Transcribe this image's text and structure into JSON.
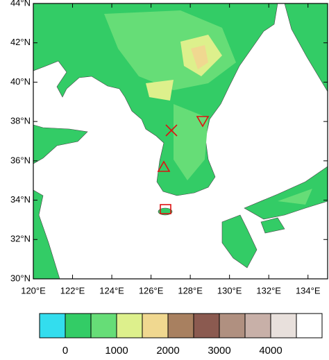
{
  "map": {
    "xlim": [
      120,
      135
    ],
    "ylim": [
      30,
      44
    ],
    "xticks": [
      {
        "value": 120,
        "label": "120°E"
      },
      {
        "value": 122,
        "label": "122°E"
      },
      {
        "value": 124,
        "label": "124°E"
      },
      {
        "value": 126,
        "label": "126°E"
      },
      {
        "value": 128,
        "label": "128°E"
      },
      {
        "value": 130,
        "label": "130°E"
      },
      {
        "value": 132,
        "label": "132°E"
      },
      {
        "value": 134,
        "label": "134°E"
      }
    ],
    "yticks": [
      {
        "value": 30,
        "label": "30°N"
      },
      {
        "value": 32,
        "label": "32°N"
      },
      {
        "value": 34,
        "label": "34°N"
      },
      {
        "value": 36,
        "label": "36°N"
      },
      {
        "value": 38,
        "label": "38°N"
      },
      {
        "value": 40,
        "label": "40°N"
      },
      {
        "value": 42,
        "label": "42°N"
      },
      {
        "value": 44,
        "label": "44°N"
      }
    ]
  },
  "colorbar": {
    "colors": [
      "#33ddee",
      "#33cc66",
      "#66dd77",
      "#ddf08c",
      "#f0d890",
      "#a88060",
      "#8b5a50",
      "#b09080",
      "#c8b0a8",
      "#e8e0dc",
      "#ffffff"
    ],
    "levels": [
      0,
      500,
      1000,
      1500,
      2000,
      2500,
      3000,
      3500,
      4000,
      4500
    ],
    "ticks": [
      0,
      1000,
      2000,
      3000,
      4000
    ]
  }
}
